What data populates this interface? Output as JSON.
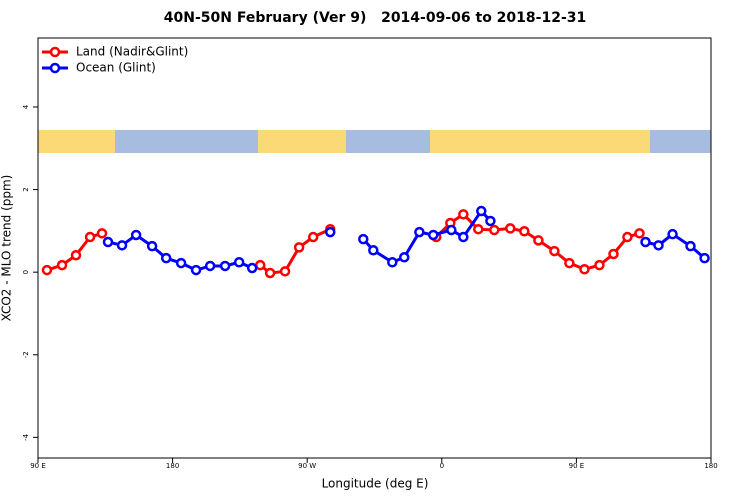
{
  "chart_data": {
    "type": "line",
    "title": "40N-50N February (Ver 9)   2014-09-06 to 2018-12-31",
    "x_label": "Longitude (deg E)",
    "y_label": "XCO2 - MLO trend (ppm)",
    "xlim": [
      90,
      540
    ],
    "ylim": [
      -4.5,
      5.67
    ],
    "xticks": [
      {
        "value": 90,
        "label": "90 E"
      },
      180,
      {
        "value": 270,
        "label": "90 W"
      },
      {
        "value": 360,
        "label": "0"
      },
      {
        "value": 450,
        "label": "90 E"
      },
      {
        "value": 540,
        "label": "180"
      }
    ],
    "yticks": [
      -4,
      -2,
      0,
      2,
      4
    ],
    "legend": "top-left",
    "series": [
      {
        "name": "Land (Nadir&Glint)",
        "color": "#ff0000",
        "x": [
          96.0,
          106.1,
          115.4,
          124.8,
          132.8,
          null,
          238.6,
          245.2,
          255.2,
          264.6,
          274.0,
          285.4,
          null,
          356.3,
          365.7,
          374.4,
          384.4,
          395.1,
          405.8,
          415.2,
          424.6,
          435.3,
          445.3,
          455.4,
          465.4,
          474.8,
          484.1,
          492.2
        ],
        "values": [
          0.05,
          0.17,
          0.41,
          0.85,
          0.94,
          null,
          0.17,
          -0.02,
          0.02,
          0.6,
          0.85,
          1.04,
          null,
          0.85,
          1.19,
          1.4,
          1.04,
          1.02,
          1.06,
          0.99,
          0.77,
          0.51,
          0.22,
          0.07,
          0.17,
          0.44,
          0.85,
          0.94
        ]
      },
      {
        "name": "Ocean (Glint)",
        "color": "#0000ff",
        "x": [
          136.8,
          146.2,
          155.6,
          166.3,
          175.7,
          185.7,
          195.7,
          205.1,
          215.1,
          224.5,
          233.2,
          null,
          285.4,
          null,
          307.5,
          314.2,
          326.9,
          334.9,
          345.0,
          354.3,
          366.4,
          374.4,
          386.4,
          392.5,
          null,
          496.2,
          504.9,
          514.3,
          526.3,
          535.7
        ],
        "values": [
          0.73,
          0.65,
          0.9,
          0.63,
          0.34,
          0.22,
          0.05,
          0.15,
          0.15,
          0.24,
          0.1,
          null,
          0.97,
          null,
          0.8,
          0.53,
          0.24,
          0.36,
          0.97,
          0.9,
          1.02,
          0.85,
          1.48,
          1.24,
          null,
          0.73,
          0.65,
          0.92,
          0.63,
          0.34
        ]
      }
    ]
  }
}
